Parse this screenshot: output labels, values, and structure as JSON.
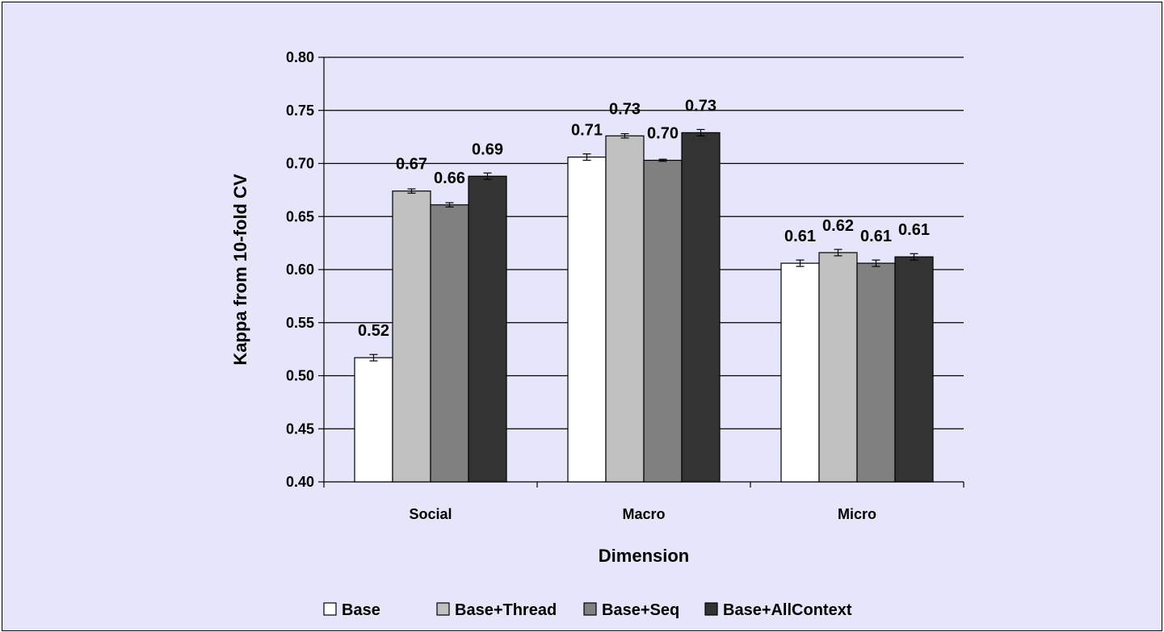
{
  "colors": {
    "background": "#e6e6fa",
    "frame": "#000000",
    "gridline": "#000000"
  },
  "chart_data": {
    "type": "bar",
    "title": "",
    "xlabel": "Dimension",
    "ylabel": "Kappa from 10-fold CV",
    "ylim": [
      0.4,
      0.8
    ],
    "yticks": [
      "0.40",
      "0.45",
      "0.50",
      "0.55",
      "0.60",
      "0.65",
      "0.70",
      "0.75",
      "0.80"
    ],
    "categories": [
      "Social",
      "Macro",
      "Micro"
    ],
    "grid": true,
    "legend_position": "bottom",
    "error_bars": true,
    "series": [
      {
        "name": "Base",
        "color": "#ffffff",
        "values": [
          0.517,
          0.706,
          0.606
        ],
        "errors": [
          0.003,
          0.003,
          0.003
        ],
        "labels": [
          "0.52",
          "0.71",
          "0.61"
        ]
      },
      {
        "name": "Base+Thread",
        "color": "#c0c0c0",
        "values": [
          0.674,
          0.726,
          0.616
        ],
        "errors": [
          0.002,
          0.002,
          0.003
        ],
        "labels": [
          "0.67",
          "0.73",
          "0.62"
        ]
      },
      {
        "name": "Base+Seq",
        "color": "#808080",
        "values": [
          0.661,
          0.703,
          0.606
        ],
        "errors": [
          0.002,
          0.001,
          0.003
        ],
        "labels": [
          "0.66",
          "0.70",
          "0.61"
        ]
      },
      {
        "name": "Base+AllContext",
        "color": "#333333",
        "values": [
          0.688,
          0.729,
          0.612
        ],
        "errors": [
          0.003,
          0.003,
          0.003
        ],
        "labels": [
          "0.69",
          "0.73",
          "0.61"
        ]
      }
    ]
  }
}
